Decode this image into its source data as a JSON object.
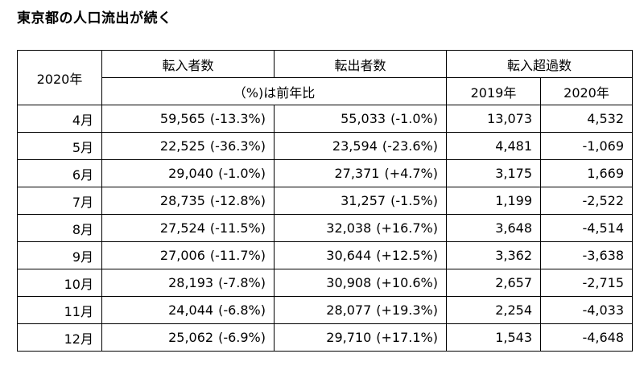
{
  "title": "東京都の人口流出が続く",
  "headers": {
    "year_col": "2020年",
    "in": "転入者数",
    "out": "転出者数",
    "net": "転入超過数",
    "pct_note": "（%)は前年比",
    "net_2019": "2019年",
    "net_2020": "2020年"
  },
  "rows": [
    {
      "month": "4月",
      "in_val": "59,565",
      "in_pct": "(-13.3%)",
      "out_val": "55,033",
      "out_pct": "(-1.0%)",
      "net2019": "13,073",
      "net2020": "4,532"
    },
    {
      "month": "5月",
      "in_val": "22,525",
      "in_pct": "(-36.3%)",
      "out_val": "23,594",
      "out_pct": "(-23.6%)",
      "net2019": "4,481",
      "net2020": "-1,069"
    },
    {
      "month": "6月",
      "in_val": "29,040",
      "in_pct": "(-1.0%)",
      "out_val": "27,371",
      "out_pct": "(+4.7%)",
      "net2019": "3,175",
      "net2020": "1,669"
    },
    {
      "month": "7月",
      "in_val": "28,735",
      "in_pct": "(-12.8%)",
      "out_val": "31,257",
      "out_pct": "(-1.5%)",
      "net2019": "1,199",
      "net2020": "-2,522"
    },
    {
      "month": "8月",
      "in_val": "27,524",
      "in_pct": "(-11.5%)",
      "out_val": "32,038",
      "out_pct": "(+16.7%)",
      "net2019": "3,648",
      "net2020": "-4,514"
    },
    {
      "month": "9月",
      "in_val": "27,006",
      "in_pct": "(-11.7%)",
      "out_val": "30,644",
      "out_pct": "(+12.5%)",
      "net2019": "3,362",
      "net2020": "-3,638"
    },
    {
      "month": "10月",
      "in_val": "28,193",
      "in_pct": "(-7.8%)",
      "out_val": "30,908",
      "out_pct": "(+10.6%)",
      "net2019": "2,657",
      "net2020": "-2,715"
    },
    {
      "month": "11月",
      "in_val": "24,044",
      "in_pct": "(-6.8%)",
      "out_val": "28,077",
      "out_pct": "(+19.3%)",
      "net2019": "2,254",
      "net2020": "-4,033"
    },
    {
      "month": "12月",
      "in_val": "25,062",
      "in_pct": "(-6.9%)",
      "out_val": "29,710",
      "out_pct": "(+17.1%)",
      "net2019": "1,543",
      "net2020": "-4,648"
    }
  ]
}
